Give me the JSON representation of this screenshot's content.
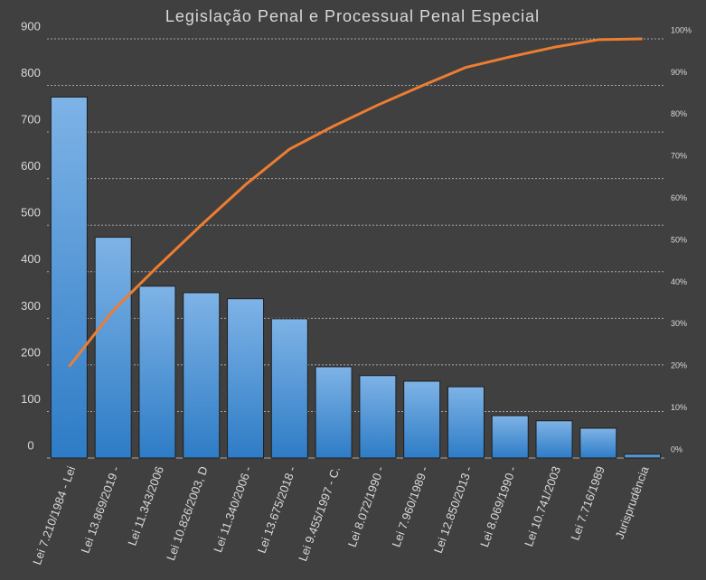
{
  "chart_data": {
    "type": "pareto",
    "title": "Legislação Penal e Processual Penal Especial",
    "categories": [
      "Lei 7.210/1984 - Lei",
      "Lei 13.869/2019 -",
      "Lei 11.343/2006",
      "Lei 10.826/2003, D",
      "Lei 11.340/2006 -",
      "Lei 13.675/2018 -",
      "Lei 9.455/1997 - C.",
      "Lei 8.072/1990 -",
      "Lei 7.960/1989 -",
      "Lei 12.850/2013 -",
      "Lei 8.069/1990 -",
      "Lei 10.741/2003",
      "Lei 7.716/1989",
      "Jurisprudência"
    ],
    "series": [
      {
        "type": "bar",
        "color": "#5b9bd5",
        "values": [
          775,
          474,
          369,
          355,
          342,
          299,
          196,
          177,
          165,
          153,
          91,
          80,
          64,
          8
        ]
      },
      {
        "type": "line",
        "axis": "y2",
        "color": "#ed7d31",
        "values": [
          21.8,
          35.2,
          45.6,
          55.6,
          65.2,
          73.7,
          79.2,
          84.2,
          88.8,
          93.2,
          95.7,
          98.0,
          99.8,
          100
        ]
      }
    ],
    "ylim": [
      0,
      900
    ],
    "yticks": [
      0,
      100,
      200,
      300,
      400,
      500,
      600,
      700,
      800,
      900
    ],
    "y2lim": [
      0,
      100
    ],
    "y2ticks": [
      {
        "value": 0,
        "label": "0%"
      },
      {
        "value": 10,
        "label": "10%"
      },
      {
        "value": 20,
        "label": "20%"
      },
      {
        "value": 30,
        "label": "30%"
      },
      {
        "value": 40,
        "label": "40%"
      },
      {
        "value": 50,
        "label": "50%"
      },
      {
        "value": 60,
        "label": "60%"
      },
      {
        "value": 70,
        "label": "70%"
      },
      {
        "value": 80,
        "label": "80%"
      },
      {
        "value": 90,
        "label": "90%"
      },
      {
        "value": 100,
        "label": "100%"
      }
    ],
    "grid": true
  }
}
